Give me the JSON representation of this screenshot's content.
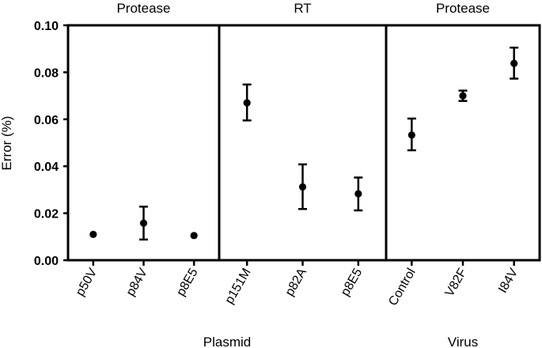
{
  "chart_data": {
    "type": "scatter",
    "ylabel": "Error (%)",
    "ylim": [
      0,
      0.1
    ],
    "yticks": [
      "0.00",
      "0.02",
      "0.04",
      "0.06",
      "0.08",
      "0.10"
    ],
    "ytick_values": [
      0,
      0.02,
      0.04,
      0.06,
      0.08,
      0.1
    ],
    "grid": false,
    "panels": [
      {
        "title": "Protease",
        "categories": [
          "p50V",
          "p84V",
          "p8E5"
        ],
        "values": [
          0.011,
          0.0158,
          0.0105
        ],
        "err_low": [
          0.011,
          0.0088,
          0.0105
        ],
        "err_high": [
          0.011,
          0.0228,
          0.0105
        ]
      },
      {
        "title": "RT",
        "categories": [
          "p151M",
          "p82A",
          "p8E5"
        ],
        "values": [
          0.067,
          0.0312,
          0.0283
        ],
        "err_low": [
          0.0595,
          0.0218,
          0.0212
        ],
        "err_high": [
          0.0748,
          0.0408,
          0.0352
        ]
      },
      {
        "title": "Protease",
        "categories": [
          "Control",
          "V82F",
          "I84V"
        ],
        "values": [
          0.0533,
          0.07,
          0.0838
        ],
        "err_low": [
          0.0468,
          0.0678,
          0.0773
        ],
        "err_high": [
          0.0603,
          0.0722,
          0.0905
        ]
      }
    ],
    "groups": [
      {
        "label": "Plasmid",
        "panels": [
          0,
          1
        ]
      },
      {
        "label": "Virus",
        "panels": [
          2
        ]
      }
    ]
  }
}
